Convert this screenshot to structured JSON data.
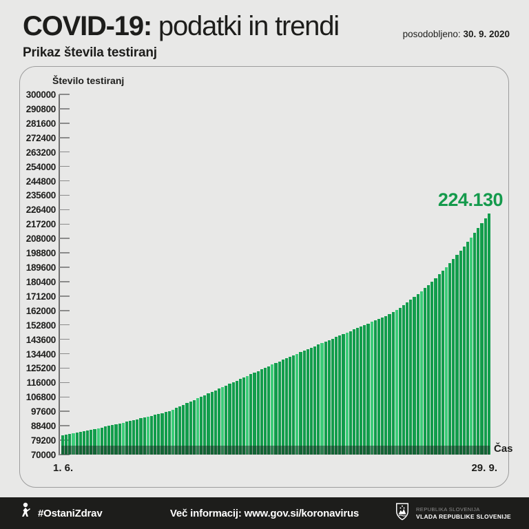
{
  "header": {
    "title_bold": "COVID-19:",
    "title_rest": " podatki in trendi",
    "updated_label": "posodobljeno: ",
    "updated_date": "30. 9. 2020",
    "subtitle": "Prikaz števila testiranj"
  },
  "chart_data": {
    "type": "bar",
    "title": "Prikaz števila testiranj",
    "ylabel": "Število testiranj",
    "xlabel": "Čas",
    "x_start_label": "1. 6.",
    "x_end_label": "29. 9.",
    "ylim": [
      70000,
      300000
    ],
    "grid": false,
    "legend": "none",
    "bar_color": "#129d4c",
    "annotation": {
      "text": "224.130",
      "value": 224130,
      "color": "#149a4c"
    },
    "y_ticks": [
      300000,
      290800,
      281600,
      272400,
      263200,
      254000,
      244800,
      235600,
      226400,
      217200,
      208000,
      198800,
      189600,
      180400,
      171200,
      162000,
      152800,
      143600,
      134400,
      125200,
      116000,
      106800,
      97600,
      88400,
      79200,
      70000
    ],
    "x_range_note": "daily cumulative tests from 1 June to 29 September 2020, 121 bars",
    "values": [
      82300,
      82730,
      83170,
      83620,
      84060,
      84520,
      84980,
      85450,
      85920,
      86400,
      86880,
      87370,
      87860,
      88360,
      88870,
      89380,
      89900,
      90420,
      90950,
      91480,
      92020,
      92560,
      93120,
      93670,
      94230,
      94800,
      95370,
      95950,
      96540,
      97120,
      97720,
      98750,
      99770,
      100800,
      101820,
      102850,
      103870,
      104900,
      105920,
      106950,
      107970,
      109000,
      110020,
      111050,
      112070,
      113100,
      114120,
      115150,
      116170,
      117200,
      118220,
      119250,
      120270,
      121300,
      122320,
      123350,
      124370,
      125400,
      126420,
      127450,
      128470,
      129500,
      130470,
      131440,
      132400,
      133370,
      134340,
      135310,
      136280,
      137240,
      138210,
      139180,
      140150,
      141120,
      142080,
      143050,
      144020,
      144990,
      145960,
      146920,
      147890,
      148860,
      149830,
      150800,
      151760,
      152730,
      153700,
      154670,
      155640,
      156600,
      157570,
      158540,
      159510,
      160880,
      162320,
      163830,
      165410,
      167050,
      168770,
      170560,
      172410,
      174340,
      176330,
      178400,
      180530,
      182740,
      185010,
      187350,
      189770,
      192250,
      194800,
      197420,
      200110,
      202870,
      205700,
      208600,
      211570,
      214600,
      217710,
      220890,
      224130
    ]
  },
  "footer": {
    "hashtag": "#OstaniZdrav",
    "info": "Več informacij: www.gov.si/koronavirus",
    "gov_line1": "REPUBLIKA SLOVENIJA",
    "gov_line2": "VLADA REPUBLIKE SLOVENIJE"
  },
  "colors": {
    "background": "#e8e8e7",
    "bar_green": "#129d4c",
    "annotation_green": "#149a4c",
    "footer_bg": "#1d1d1b",
    "panel_border": "#9c9c9c",
    "text_dark": "#1d1d1b"
  }
}
